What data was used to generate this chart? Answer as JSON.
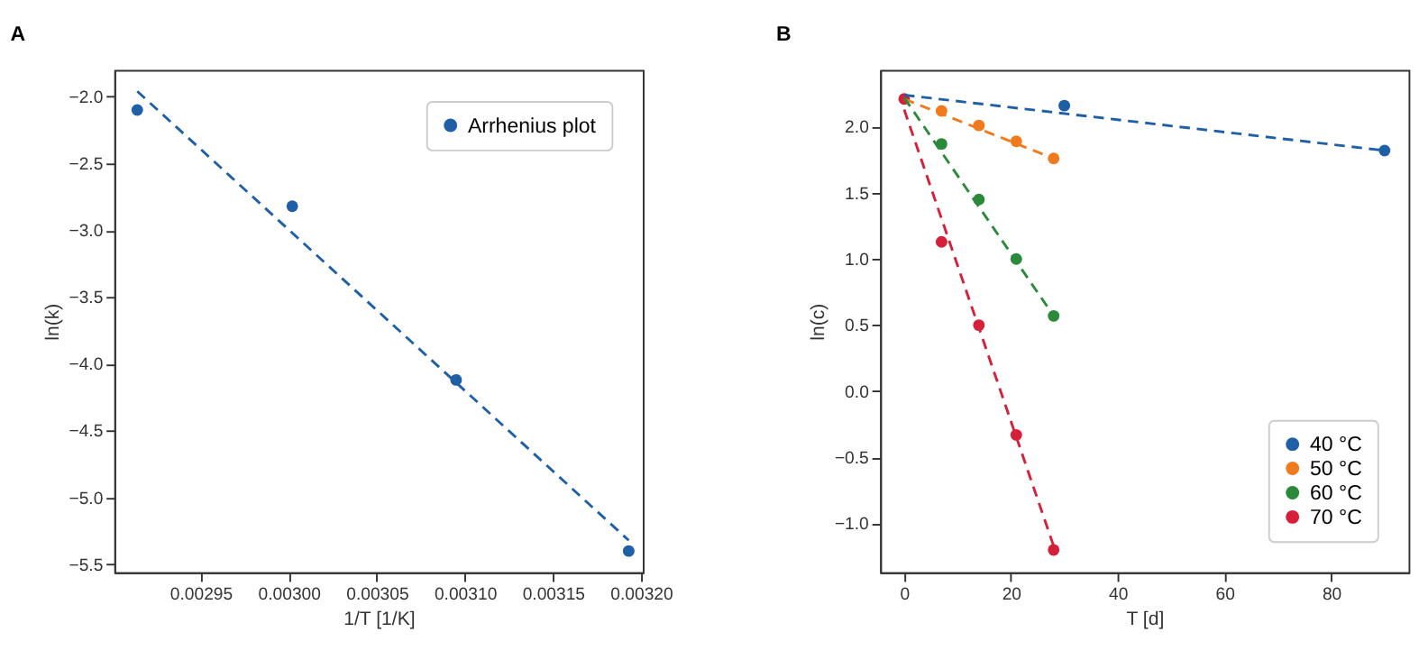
{
  "chart_data": [
    {
      "type": "scatter",
      "title": "A",
      "xlabel": "1/T [1/K]",
      "ylabel": "ln(k)",
      "xlim": [
        0.002901,
        0.003201
      ],
      "ylim": [
        -5.56,
        -1.8
      ],
      "xticks": [
        {
          "value": 0.00295,
          "label": "0.00295"
        },
        {
          "value": 0.003,
          "label": "0.00300"
        },
        {
          "value": 0.00305,
          "label": "0.00305"
        },
        {
          "value": 0.0031,
          "label": "0.00310"
        },
        {
          "value": 0.00315,
          "label": "0.00315"
        },
        {
          "value": 0.0032,
          "label": "0.00320"
        }
      ],
      "yticks": [
        {
          "value": -5.5,
          "label": "−5.5"
        },
        {
          "value": -5,
          "label": "−5.0"
        },
        {
          "value": -4.5,
          "label": "−4.5"
        },
        {
          "value": -4,
          "label": "−4.0"
        },
        {
          "value": -3.5,
          "label": "−3.5"
        },
        {
          "value": -3,
          "label": "−3.0"
        },
        {
          "value": -2.5,
          "label": "−2.5"
        },
        {
          "value": -2,
          "label": "−2.0"
        }
      ],
      "grid": false,
      "legend": "top right",
      "marker": "circle",
      "series": [
        {
          "name": "Arrhenius plot",
          "color": "#1f5fa5",
          "x": [
            0.002914,
            0.003002,
            0.003095,
            0.003193
          ],
          "values": [
            -2.1,
            -2.82,
            -4.12,
            -5.4
          ]
        },
        {
          "type": "line",
          "line_style": "dashed",
          "marker": "none",
          "color": "#1f5fa5",
          "x": [
            0.002914,
            0.003193
          ],
          "values": [
            -1.96,
            -5.32
          ]
        }
      ]
    },
    {
      "type": "scatter",
      "title": "B",
      "xlabel": "T [d]",
      "ylabel": "ln(c)",
      "xlim": [
        -4.5,
        94.5
      ],
      "ylim": [
        -1.37,
        2.43
      ],
      "xticks": [
        0,
        20,
        40,
        60,
        80
      ],
      "yticks": [
        {
          "value": -1,
          "label": "−1.0"
        },
        {
          "value": -0.5,
          "label": "−0.5"
        },
        {
          "value": 0,
          "label": "0.0"
        },
        {
          "value": 0.5,
          "label": "0.5"
        },
        {
          "value": 1,
          "label": "1.0"
        },
        {
          "value": 1.5,
          "label": "1.5"
        },
        {
          "value": 2,
          "label": "2.0"
        }
      ],
      "grid": false,
      "legend": "bottom right",
      "marker": "circle",
      "series": [
        {
          "name": "40 °C",
          "color": "#1f5fa5",
          "x": [
            30,
            90
          ],
          "values": [
            2.16,
            1.82
          ]
        },
        {
          "name": "50 °C",
          "color": "#f07b1e",
          "x": [
            7,
            14,
            21,
            28
          ],
          "values": [
            2.12,
            2.01,
            1.89,
            1.76
          ]
        },
        {
          "name": "60 °C",
          "color": "#2a8a3a",
          "x": [
            7,
            14,
            21,
            28
          ],
          "values": [
            1.87,
            1.45,
            1.0,
            0.57
          ]
        },
        {
          "name": "70 °C",
          "color": "#d6203a",
          "x": [
            0,
            7,
            14,
            21,
            28
          ],
          "values": [
            2.21,
            1.13,
            0.5,
            -0.33,
            -1.2
          ]
        },
        {
          "type": "line",
          "line_style": "dashed",
          "marker": "none",
          "color": "#1f5fa5",
          "x": [
            0,
            90
          ],
          "values": [
            2.24,
            1.82
          ]
        },
        {
          "type": "line",
          "line_style": "dashed",
          "marker": "none",
          "color": "#f07b1e",
          "x": [
            0,
            28
          ],
          "values": [
            2.21,
            1.76
          ]
        },
        {
          "type": "line",
          "line_style": "dashed",
          "marker": "none",
          "color": "#2a8a3a",
          "x": [
            0,
            28
          ],
          "values": [
            2.22,
            0.57
          ]
        },
        {
          "type": "line",
          "line_style": "dashed",
          "marker": "none",
          "color": "#d6203a",
          "x": [
            0,
            28
          ],
          "values": [
            2.13,
            -1.17
          ]
        }
      ]
    }
  ]
}
